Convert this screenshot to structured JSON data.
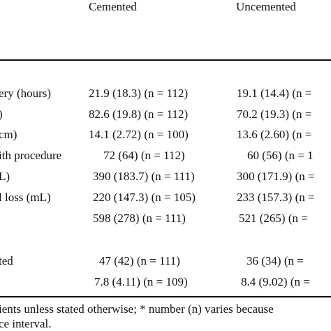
{
  "table": {
    "headers": {
      "cemented": "Cemented",
      "uncemented": "Uncemented"
    },
    "rows": [
      {
        "label": "ery (hours)",
        "cemented": "21.9 (18.3) (n = 112)",
        "uncemented": "19.1 (14.4) (n ="
      },
      {
        "label": ")",
        "cemented": "82.6 (19.8) (n = 112)",
        "uncemented": "70.2 (19.3) (n ="
      },
      {
        "label": "cm)",
        "cemented": "14.1 (2.72) (n = 100)",
        "uncemented": "13.6 (2.60) (n ="
      },
      {
        "label": "ith procedure",
        "cemented": "72 (64) (n = 112)",
        "uncemented": "60 (56) (n = 1"
      },
      {
        "label": "L)",
        "cemented": "390 (183.7) (n = 111)",
        "uncemented": "300 (171.9) (n ="
      },
      {
        "label": "l loss (mL)",
        "cemented": "220 (147.3) (n = 105)",
        "uncemented": "233 (157.3) (n ="
      },
      {
        "label": "",
        "cemented": "598 (278) (n = 111)",
        "uncemented": "521 (265) (n ="
      },
      {
        "label": "ted",
        "cemented": "47 (42) (n = 111)",
        "uncemented": "36 (34) (n ="
      },
      {
        "label": "",
        "cemented": "7.8 (4.11) (n = 109)",
        "uncemented": "8.4 (9.02) (n ="
      }
    ],
    "footnote": {
      "line1": "ients unless stated otherwise; * number (n) varies because",
      "line2": "ce interval."
    }
  }
}
